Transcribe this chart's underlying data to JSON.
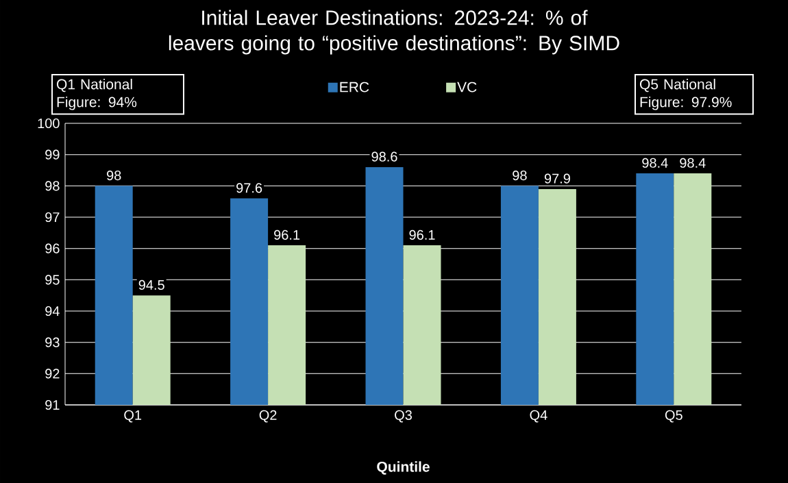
{
  "chart_data": {
    "type": "bar",
    "title": "Initial Leaver Destinations: 2023-24: % of leavers going to “positive destinations”: By SIMD",
    "xlabel": "Quintile",
    "categories": [
      "Q1",
      "Q2",
      "Q3",
      "Q4",
      "Q5"
    ],
    "series": [
      {
        "name": "ERC",
        "color": "#2e75b6",
        "values": [
          98,
          97.6,
          98.6,
          98,
          98.4
        ]
      },
      {
        "name": "VC",
        "color": "#c5e0b4",
        "values": [
          94.5,
          96.1,
          96.1,
          97.9,
          98.4
        ]
      }
    ],
    "ylim": [
      91,
      100
    ],
    "yticks": [
      91,
      92,
      93,
      94,
      95,
      96,
      97,
      98,
      99,
      100
    ],
    "grid": "y",
    "legend": "top",
    "data_labels": true,
    "annotations": [
      "Q1 National Figure: 94%",
      "Q5 National Figure: 97.9%"
    ]
  }
}
